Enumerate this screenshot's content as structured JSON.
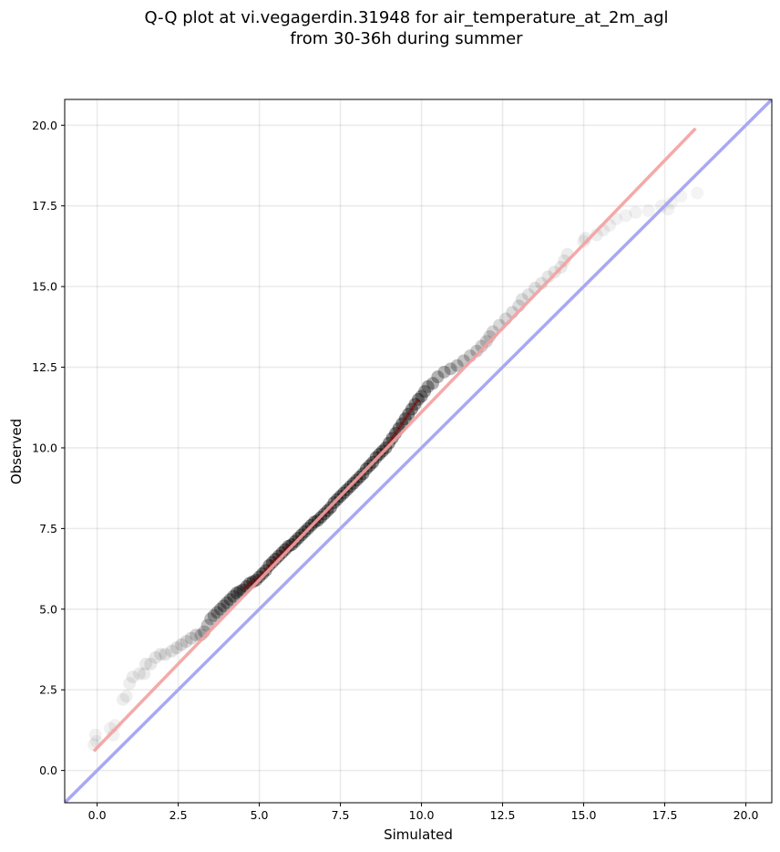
{
  "chart_data": {
    "type": "scatter",
    "title_line1": "Q-Q plot at vi.vegagerdin.31948 for air_temperature_at_2m_agl",
    "title_line2": "from 30-36h during summer",
    "xlabel": "Simulated",
    "ylabel": "Observed",
    "xlim": [
      -1.0,
      20.8
    ],
    "ylim": [
      -1.0,
      20.8
    ],
    "xticks": [
      "0.0",
      "2.5",
      "5.0",
      "7.5",
      "10.0",
      "12.5",
      "15.0",
      "17.5",
      "20.0"
    ],
    "yticks": [
      "0.0",
      "2.5",
      "5.0",
      "7.5",
      "10.0",
      "12.5",
      "15.0",
      "17.5",
      "20.0"
    ],
    "grid": true,
    "points_color": "#000000",
    "fit_line": {
      "color": "#f4a0a0",
      "x": [
        -0.1,
        18.45
      ],
      "y": [
        0.6,
        19.9
      ]
    },
    "identity_line": {
      "color": "#a8a8f4",
      "x": [
        -1.0,
        20.8
      ],
      "y": [
        -1.0,
        20.8
      ]
    },
    "highlight_color": "#8b0000",
    "points_x": [
      -0.1,
      -0.05,
      -0.02,
      0.4,
      0.5,
      0.55,
      0.8,
      0.9,
      1.0,
      1.1,
      1.3,
      1.45,
      1.5,
      1.65,
      1.8,
      1.95,
      2.1,
      2.3,
      2.45,
      2.6,
      2.75,
      2.9,
      3.05,
      3.2,
      3.3,
      3.4,
      3.5,
      3.6,
      3.7,
      3.8,
      3.9,
      4.0,
      4.1,
      4.2,
      4.3,
      4.4,
      4.5,
      4.6,
      4.7,
      4.8,
      4.9,
      5.0,
      5.1,
      5.2,
      5.3,
      5.4,
      5.5,
      5.6,
      5.7,
      5.8,
      5.9,
      6.0,
      6.1,
      6.2,
      6.3,
      6.4,
      6.5,
      6.6,
      6.7,
      6.8,
      6.9,
      7.0,
      7.1,
      7.2,
      7.3,
      7.4,
      7.5,
      7.6,
      7.7,
      7.8,
      7.9,
      8.0,
      8.1,
      8.2,
      8.3,
      8.4,
      8.5,
      8.6,
      8.7,
      8.8,
      8.9,
      9.0,
      9.1,
      9.2,
      9.3,
      9.4,
      9.5,
      9.6,
      9.7,
      9.8,
      9.9,
      10.0,
      10.1,
      10.2,
      10.35,
      10.5,
      10.7,
      10.9,
      11.1,
      11.3,
      11.5,
      11.7,
      11.85,
      12.0,
      12.1,
      12.2,
      12.4,
      12.6,
      12.8,
      13.0,
      13.1,
      13.3,
      13.5,
      13.7,
      13.9,
      14.1,
      14.3,
      14.4,
      14.5,
      15.0,
      15.05,
      15.4,
      15.6,
      15.8,
      16.0,
      16.3,
      16.6,
      17.0,
      17.4,
      17.6,
      17.7,
      18.0,
      18.5
    ],
    "points_y": [
      0.8,
      1.1,
      0.9,
      1.3,
      1.1,
      1.4,
      2.2,
      2.3,
      2.7,
      2.9,
      3.0,
      3.0,
      3.3,
      3.3,
      3.5,
      3.6,
      3.6,
      3.7,
      3.8,
      3.9,
      4.0,
      4.1,
      4.2,
      4.2,
      4.3,
      4.5,
      4.7,
      4.8,
      4.9,
      5.0,
      5.1,
      5.2,
      5.3,
      5.4,
      5.5,
      5.55,
      5.6,
      5.7,
      5.8,
      5.85,
      5.9,
      6.0,
      6.1,
      6.2,
      6.35,
      6.45,
      6.55,
      6.65,
      6.75,
      6.85,
      6.95,
      7.0,
      7.1,
      7.2,
      7.3,
      7.4,
      7.5,
      7.6,
      7.7,
      7.75,
      7.85,
      7.95,
      8.05,
      8.15,
      8.3,
      8.4,
      8.5,
      8.6,
      8.7,
      8.8,
      8.9,
      9.0,
      9.1,
      9.2,
      9.35,
      9.45,
      9.55,
      9.7,
      9.8,
      9.9,
      10.0,
      10.15,
      10.3,
      10.45,
      10.6,
      10.75,
      10.9,
      11.05,
      11.2,
      11.35,
      11.5,
      11.6,
      11.75,
      11.9,
      12.0,
      12.2,
      12.35,
      12.45,
      12.55,
      12.7,
      12.85,
      13.0,
      13.15,
      13.3,
      13.45,
      13.6,
      13.8,
      14.0,
      14.2,
      14.4,
      14.6,
      14.75,
      14.95,
      15.1,
      15.3,
      15.45,
      15.6,
      15.8,
      16.0,
      16.4,
      16.5,
      16.6,
      16.75,
      16.9,
      17.1,
      17.2,
      17.3,
      17.35,
      17.5,
      17.4,
      17.6,
      17.8,
      17.9
    ],
    "points_alpha": [
      0.1,
      0.1,
      0.1,
      0.1,
      0.1,
      0.1,
      0.12,
      0.12,
      0.12,
      0.14,
      0.14,
      0.14,
      0.16,
      0.16,
      0.18,
      0.18,
      0.2,
      0.2,
      0.22,
      0.24,
      0.26,
      0.28,
      0.32,
      0.36,
      0.4,
      0.44,
      0.48,
      0.52,
      0.56,
      0.6,
      0.62,
      0.64,
      0.66,
      0.68,
      0.7,
      0.7,
      0.72,
      0.72,
      0.74,
      0.74,
      0.75,
      0.76,
      0.76,
      0.77,
      0.78,
      0.78,
      0.79,
      0.8,
      0.8,
      0.8,
      0.8,
      0.8,
      0.8,
      0.8,
      0.8,
      0.8,
      0.8,
      0.8,
      0.8,
      0.8,
      0.8,
      0.8,
      0.8,
      0.8,
      0.8,
      0.8,
      0.8,
      0.8,
      0.8,
      0.8,
      0.8,
      0.8,
      0.8,
      0.8,
      0.8,
      0.8,
      0.8,
      0.8,
      0.8,
      0.8,
      0.8,
      0.8,
      0.8,
      0.8,
      0.8,
      0.8,
      0.8,
      0.78,
      0.76,
      0.74,
      0.72,
      0.7,
      0.66,
      0.62,
      0.58,
      0.55,
      0.52,
      0.48,
      0.45,
      0.42,
      0.4,
      0.38,
      0.35,
      0.33,
      0.31,
      0.3,
      0.28,
      0.27,
      0.26,
      0.24,
      0.22,
      0.21,
      0.2,
      0.19,
      0.18,
      0.17,
      0.16,
      0.15,
      0.14,
      0.13,
      0.13,
      0.12,
      0.12,
      0.11,
      0.1,
      0.1,
      0.1,
      0.09,
      0.09,
      0.09,
      0.08,
      0.08,
      0.08,
      0.08,
      0.08
    ]
  }
}
